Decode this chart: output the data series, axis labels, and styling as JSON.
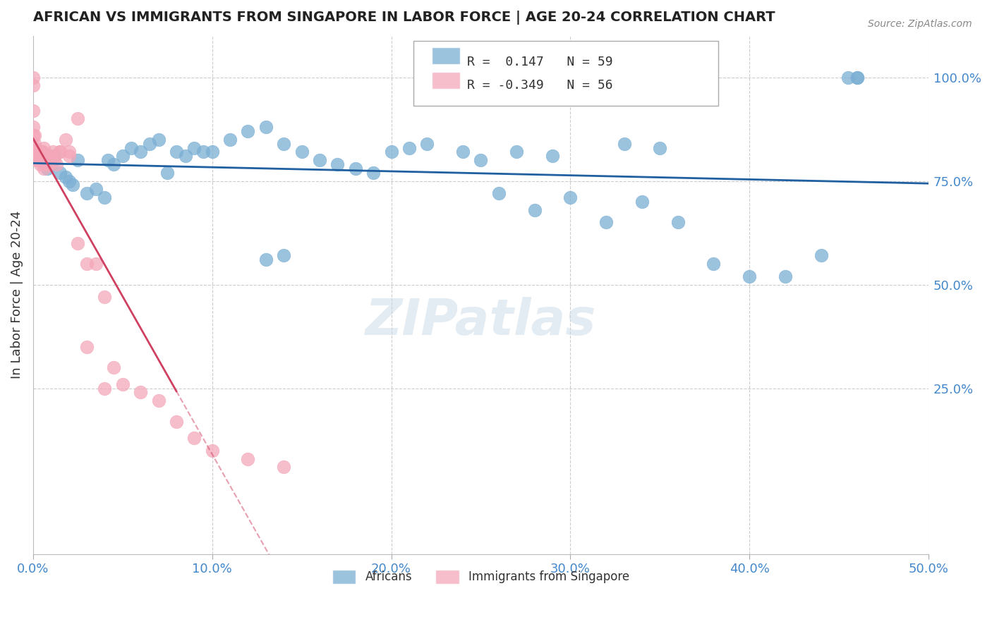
{
  "title": "AFRICAN VS IMMIGRANTS FROM SINGAPORE IN LABOR FORCE | AGE 20-24 CORRELATION CHART",
  "source": "Source: ZipAtlas.com",
  "xlabel": "",
  "ylabel": "In Labor Force | Age 20-24",
  "xlim": [
    0.0,
    0.5
  ],
  "ylim": [
    -0.15,
    1.1
  ],
  "xticks": [
    0.0,
    0.1,
    0.2,
    0.3,
    0.4,
    0.5
  ],
  "xticklabels": [
    "0.0%",
    "10.0%",
    "20.0%",
    "30.0%",
    "40.0%",
    "50.0%"
  ],
  "yticks_right": [
    0.25,
    0.5,
    0.75,
    1.0
  ],
  "ytick_right_labels": [
    "25.0%",
    "50.0%",
    "75.0%",
    "100.0%"
  ],
  "grid_color": "#cccccc",
  "background_color": "#ffffff",
  "blue_color": "#7bafd4",
  "pink_color": "#f4a7b9",
  "blue_line_color": "#2060a0",
  "pink_line_color": "#d04060",
  "axis_color": "#4488cc",
  "legend_R1": "0.147",
  "legend_N1": "59",
  "legend_R2": "-0.349",
  "legend_N2": "56",
  "legend_label1": "Africans",
  "legend_label2": "Immigrants from Singapore",
  "watermark": "ZIPatlas",
  "blue_scatter_x": [
    0.0,
    0.005,
    0.008,
    0.01,
    0.012,
    0.015,
    0.018,
    0.02,
    0.022,
    0.025,
    0.03,
    0.035,
    0.04,
    0.042,
    0.045,
    0.05,
    0.055,
    0.06,
    0.065,
    0.07,
    0.075,
    0.08,
    0.085,
    0.09,
    0.095,
    0.1,
    0.11,
    0.12,
    0.13,
    0.14,
    0.15,
    0.16,
    0.17,
    0.18,
    0.19,
    0.2,
    0.21,
    0.22,
    0.24,
    0.26,
    0.28,
    0.3,
    0.32,
    0.34,
    0.36,
    0.38,
    0.4,
    0.42,
    0.44,
    0.46,
    0.13,
    0.14,
    0.25,
    0.27,
    0.29,
    0.33,
    0.35,
    0.455,
    0.46
  ],
  "blue_scatter_y": [
    0.82,
    0.8,
    0.78,
    0.79,
    0.81,
    0.77,
    0.76,
    0.75,
    0.74,
    0.8,
    0.72,
    0.73,
    0.71,
    0.8,
    0.79,
    0.81,
    0.83,
    0.82,
    0.84,
    0.85,
    0.77,
    0.82,
    0.81,
    0.83,
    0.82,
    0.82,
    0.85,
    0.87,
    0.88,
    0.84,
    0.82,
    0.8,
    0.79,
    0.78,
    0.77,
    0.82,
    0.83,
    0.84,
    0.82,
    0.72,
    0.68,
    0.71,
    0.65,
    0.7,
    0.65,
    0.55,
    0.52,
    0.52,
    0.57,
    1.0,
    0.56,
    0.57,
    0.8,
    0.82,
    0.81,
    0.84,
    0.83,
    1.0,
    1.0
  ],
  "pink_scatter_x": [
    0.0,
    0.0,
    0.0,
    0.0,
    0.001,
    0.001,
    0.002,
    0.002,
    0.003,
    0.003,
    0.004,
    0.004,
    0.005,
    0.005,
    0.006,
    0.006,
    0.007,
    0.008,
    0.009,
    0.01,
    0.01,
    0.011,
    0.012,
    0.013,
    0.015,
    0.018,
    0.02,
    0.025,
    0.03,
    0.035,
    0.04,
    0.045,
    0.05,
    0.06,
    0.07,
    0.08,
    0.09,
    0.1,
    0.12,
    0.14,
    0.0,
    0.001,
    0.002,
    0.003,
    0.004,
    0.005,
    0.006,
    0.007,
    0.008,
    0.009,
    0.01,
    0.015,
    0.02,
    0.025,
    0.03,
    0.04
  ],
  "pink_scatter_y": [
    1.0,
    0.98,
    0.92,
    0.88,
    0.86,
    0.84,
    0.82,
    0.8,
    0.82,
    0.81,
    0.8,
    0.79,
    0.82,
    0.81,
    0.8,
    0.78,
    0.79,
    0.8,
    0.79,
    0.8,
    0.81,
    0.82,
    0.8,
    0.79,
    0.82,
    0.85,
    0.82,
    0.9,
    0.55,
    0.55,
    0.47,
    0.3,
    0.26,
    0.24,
    0.22,
    0.17,
    0.13,
    0.1,
    0.08,
    0.06,
    0.86,
    0.83,
    0.81,
    0.8,
    0.82,
    0.82,
    0.83,
    0.8,
    0.79,
    0.81,
    0.8,
    0.82,
    0.81,
    0.6,
    0.35,
    0.25
  ]
}
